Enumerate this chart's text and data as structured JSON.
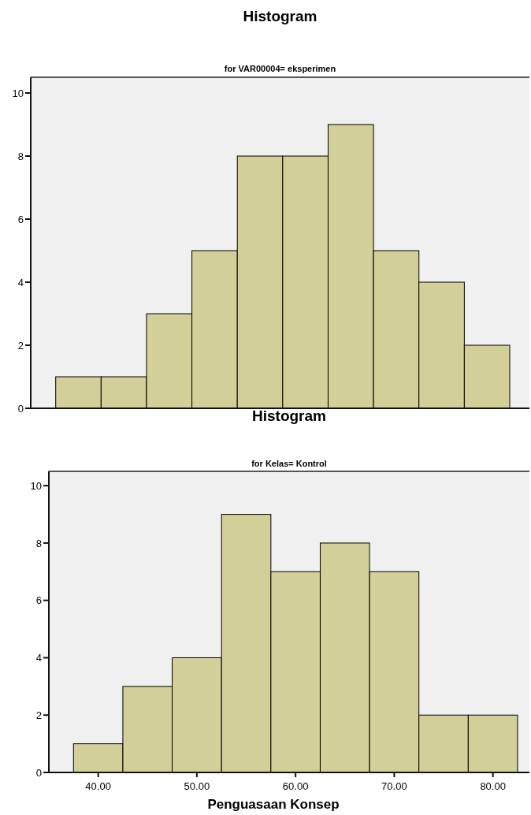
{
  "chart_data": [
    {
      "type": "bar",
      "title": "Histogram",
      "subtitle": "for VAR00004= eksperimen",
      "categories": [
        null,
        null,
        null,
        null,
        null,
        null,
        null,
        null,
        null,
        null
      ],
      "values": [
        1,
        1,
        3,
        5,
        8,
        8,
        9,
        5,
        4,
        2
      ],
      "color": "#d3cf98",
      "ylim": [
        0,
        10.5
      ],
      "yticks": [
        0,
        2,
        4,
        6,
        8,
        10
      ]
    },
    {
      "type": "histogram",
      "title": "Histogram",
      "subtitle": "for Kelas= Kontrol",
      "xlabel": "Penguasaan Konsep",
      "bins": [
        37.5,
        42.5,
        47.5,
        52.5,
        57.5,
        62.5,
        67.5,
        72.5,
        77.5,
        82.5
      ],
      "values": [
        1,
        3,
        4,
        9,
        7,
        8,
        7,
        2,
        2
      ],
      "color": "#d3cf98",
      "xlim": [
        35,
        83.7
      ],
      "ylim": [
        0,
        10.5
      ],
      "xticks": [
        {
          "value": 40,
          "label": "40.00"
        },
        {
          "value": 50,
          "label": "50.00"
        },
        {
          "value": 60,
          "label": "60.00"
        },
        {
          "value": 70,
          "label": "70.00"
        },
        {
          "value": 80,
          "label": "80.00"
        }
      ],
      "yticks": [
        0,
        2,
        4,
        6,
        8,
        10
      ]
    }
  ]
}
